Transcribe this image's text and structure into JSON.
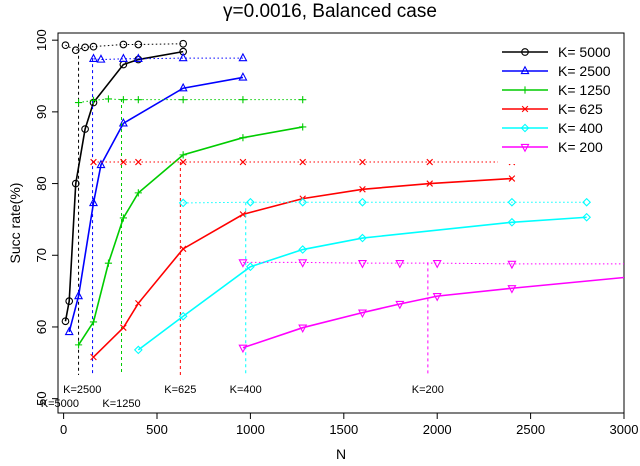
{
  "chart_data": {
    "type": "line",
    "title": "γ=0.0016, Balanced case",
    "xlabel": "N",
    "ylabel": "Succ rate(%)",
    "xlim": [
      -30,
      3000
    ],
    "ylim": [
      48,
      101
    ],
    "xticks": [
      0,
      500,
      1000,
      1500,
      2000,
      2500,
      3000
    ],
    "yticks": [
      50,
      60,
      70,
      80,
      90,
      100
    ],
    "legend_position": "top-right",
    "series": [
      {
        "name": "K= 5000",
        "color": "#000000",
        "marker": "circle",
        "x": [
          10,
          30,
          65,
          115,
          160,
          320,
          400,
          640
        ],
        "y": [
          60.8,
          63.6,
          80,
          87.6,
          91.3,
          96.6,
          97.3,
          98.4
        ],
        "ref_x": [
          10,
          65,
          115,
          160,
          320,
          400,
          640
        ],
        "ref_y": [
          99.3,
          98.6,
          99.0,
          99.1,
          99.4,
          99.4,
          99.5
        ],
        "vline_x": 80
      },
      {
        "name": "K= 2500",
        "color": "#0000ff",
        "marker": "triangle-up",
        "x": [
          30,
          80,
          160,
          200,
          320,
          640,
          960
        ],
        "y": [
          59.3,
          64.3,
          77.3,
          82.6,
          88.4,
          93.3,
          94.8
        ],
        "ref_x": [
          160,
          200,
          320,
          400,
          640,
          960
        ],
        "ref_y": [
          97.4,
          97.3,
          97.4,
          97.4,
          97.5,
          97.5
        ],
        "vline_x": 155
      },
      {
        "name": "K= 1250",
        "color": "#00cc00",
        "marker": "plus",
        "x": [
          80,
          160,
          240,
          320,
          400,
          640,
          960,
          1280
        ],
        "y": [
          57.5,
          60.7,
          68.9,
          75.2,
          78.7,
          84.0,
          86.4,
          87.9
        ],
        "ref_x": [
          80,
          160,
          240,
          320,
          400,
          640,
          960,
          1280
        ],
        "ref_y": [
          91.3,
          91.6,
          91.8,
          91.7,
          91.7,
          91.7,
          91.7,
          91.7
        ],
        "vline_x": 310
      },
      {
        "name": "K= 625",
        "color": "#ff0000",
        "marker": "cross",
        "x": [
          160,
          320,
          400,
          640,
          960,
          1280,
          1600,
          1960,
          2400
        ],
        "y": [
          55.8,
          59.9,
          63.3,
          70.9,
          75.7,
          77.9,
          79.2,
          80.0,
          80.7
        ],
        "ref_x": [
          160,
          320,
          400,
          640,
          960,
          1280,
          1600,
          1960,
          2400
        ],
        "ref_y": [
          83.0,
          83.0,
          83.0,
          83.0,
          83.0,
          83.0,
          83.0,
          83.0,
          83.0
        ],
        "vline_x": 625
      },
      {
        "name": "K= 400",
        "color": "#00ffff",
        "marker": "diamond",
        "x": [
          400,
          640,
          1000,
          1280,
          1600,
          2400,
          2800
        ],
        "y": [
          56.8,
          61.5,
          68.4,
          70.8,
          72.4,
          74.6,
          75.3
        ],
        "ref_x": [
          640,
          1000,
          1280,
          1600,
          2400,
          2800
        ],
        "ref_y": [
          77.3,
          77.4,
          77.4,
          77.4,
          77.4,
          77.4
        ],
        "vline_x": 975
      },
      {
        "name": "K= 200",
        "color": "#ff00ff",
        "marker": "triangle-down",
        "x": [
          960,
          1280,
          1600,
          1800,
          2000,
          2400,
          3000
        ],
        "y": [
          57.1,
          59.9,
          62.0,
          63.2,
          64.3,
          65.4,
          66.9
        ],
        "ref_x": [
          960,
          1280,
          1600,
          1800,
          2000,
          2400
        ],
        "ref_y": [
          69.0,
          69.0,
          68.9,
          68.9,
          68.9,
          68.8
        ],
        "vline_x": 1950
      }
    ],
    "annotations": [
      {
        "text": "K=2500",
        "x": 100,
        "row": 1
      },
      {
        "text": "K=625",
        "x": 625,
        "row": 1
      },
      {
        "text": "K=400",
        "x": 975,
        "row": 1
      },
      {
        "text": "K=200",
        "x": 1950,
        "row": 1
      },
      {
        "text": "K=5000",
        "x": -20,
        "row": 2
      },
      {
        "text": "K=1250",
        "x": 310,
        "row": 2
      }
    ]
  }
}
